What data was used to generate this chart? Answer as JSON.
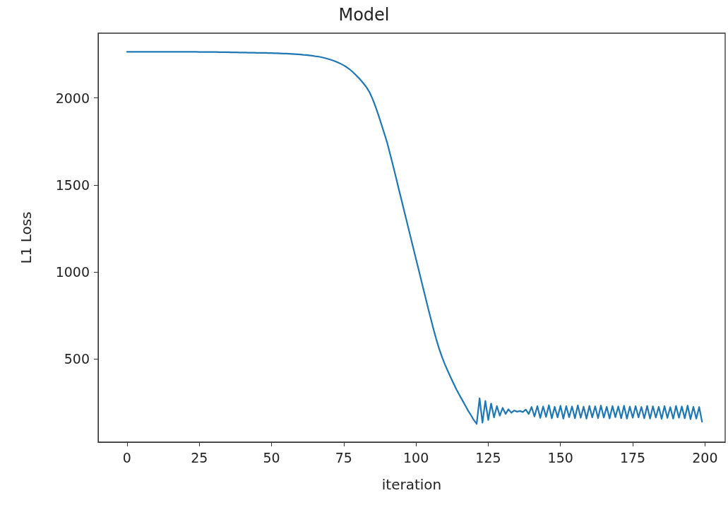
{
  "chart_data": {
    "type": "line",
    "title": "Model",
    "xlabel": "iteration",
    "ylabel": "L1 Loss",
    "x": [
      0,
      1,
      2,
      3,
      4,
      5,
      6,
      7,
      8,
      9,
      10,
      11,
      12,
      13,
      14,
      15,
      16,
      17,
      18,
      19,
      20,
      21,
      22,
      23,
      24,
      25,
      26,
      27,
      28,
      29,
      30,
      31,
      32,
      33,
      34,
      35,
      36,
      37,
      38,
      39,
      40,
      41,
      42,
      43,
      44,
      45,
      46,
      47,
      48,
      49,
      50,
      51,
      52,
      53,
      54,
      55,
      56,
      57,
      58,
      59,
      60,
      61,
      62,
      63,
      64,
      65,
      66,
      67,
      68,
      69,
      70,
      71,
      72,
      73,
      74,
      75,
      76,
      77,
      78,
      79,
      80,
      81,
      82,
      83,
      84,
      85,
      86,
      87,
      88,
      89,
      90,
      91,
      92,
      93,
      94,
      95,
      96,
      97,
      98,
      99,
      100,
      101,
      102,
      103,
      104,
      105,
      106,
      107,
      108,
      109,
      110,
      111,
      112,
      113,
      114,
      115,
      116,
      117,
      118,
      119,
      120,
      121,
      122,
      123,
      124,
      125,
      126,
      127,
      128,
      129,
      130,
      131,
      132,
      133,
      134,
      135,
      136,
      137,
      138,
      139,
      140,
      141,
      142,
      143,
      144,
      145,
      146,
      147,
      148,
      149,
      150,
      151,
      152,
      153,
      154,
      155,
      156,
      157,
      158,
      159,
      160,
      161,
      162,
      163,
      164,
      165,
      166,
      167,
      168,
      169,
      170,
      171,
      172,
      173,
      174,
      175,
      176,
      177,
      178,
      179,
      180,
      181,
      182,
      183,
      184,
      185,
      186,
      187,
      188,
      189,
      190,
      191,
      192,
      193,
      194,
      195,
      196,
      197,
      198,
      199
    ],
    "series": [
      {
        "color": "#1f77b4",
        "values": [
          2265,
          2265,
          2265,
          2265,
          2265,
          2265,
          2265,
          2265,
          2265,
          2265,
          2265,
          2265,
          2265,
          2265,
          2265,
          2265,
          2265,
          2265,
          2265,
          2265,
          2265,
          2265,
          2265,
          2265,
          2265,
          2264,
          2264,
          2264,
          2264,
          2264,
          2264,
          2264,
          2263,
          2263,
          2263,
          2263,
          2262,
          2262,
          2262,
          2261,
          2261,
          2261,
          2260,
          2260,
          2260,
          2259,
          2259,
          2259,
          2259,
          2258,
          2258,
          2257,
          2257,
          2256,
          2255,
          2255,
          2254,
          2253,
          2252,
          2251,
          2250,
          2248,
          2247,
          2245,
          2243,
          2240,
          2238,
          2235,
          2231,
          2227,
          2222,
          2217,
          2211,
          2204,
          2196,
          2187,
          2177,
          2165,
          2151,
          2135,
          2118,
          2100,
          2080,
          2058,
          2030,
          1993,
          1950,
          1902,
          1850,
          1798,
          1745,
          1680,
          1615,
          1548,
          1480,
          1413,
          1345,
          1278,
          1210,
          1142,
          1075,
          1008,
          940,
          873,
          805,
          740,
          675,
          615,
          560,
          512,
          470,
          432,
          395,
          360,
          325,
          295,
          265,
          235,
          205,
          178,
          150,
          128,
          275,
          135,
          260,
          150,
          245,
          165,
          230,
          175,
          220,
          185,
          212,
          192,
          205,
          198,
          202,
          196,
          210,
          185,
          225,
          170,
          230,
          162,
          228,
          168,
          235,
          160,
          226,
          165,
          232,
          158,
          230,
          166,
          228,
          160,
          234,
          163,
          227,
          158,
          231,
          165,
          229,
          161,
          233,
          164,
          226,
          159,
          230,
          166,
          228,
          160,
          232,
          158,
          227,
          163,
          230,
          165,
          225,
          160,
          231,
          158,
          229,
          164,
          226,
          157,
          230,
          162,
          224,
          158,
          231,
          163,
          228,
          160,
          233,
          155,
          226,
          158,
          225,
          140
        ]
      }
    ],
    "xlim": [
      -10,
      207
    ],
    "xticks": [
      0,
      25,
      50,
      75,
      100,
      125,
      150,
      175,
      200
    ],
    "ylim": [
      23,
      2372
    ],
    "yticks": [
      500,
      1000,
      1500,
      2000
    ],
    "grid": false,
    "marker": "none",
    "line_style": "solid"
  }
}
